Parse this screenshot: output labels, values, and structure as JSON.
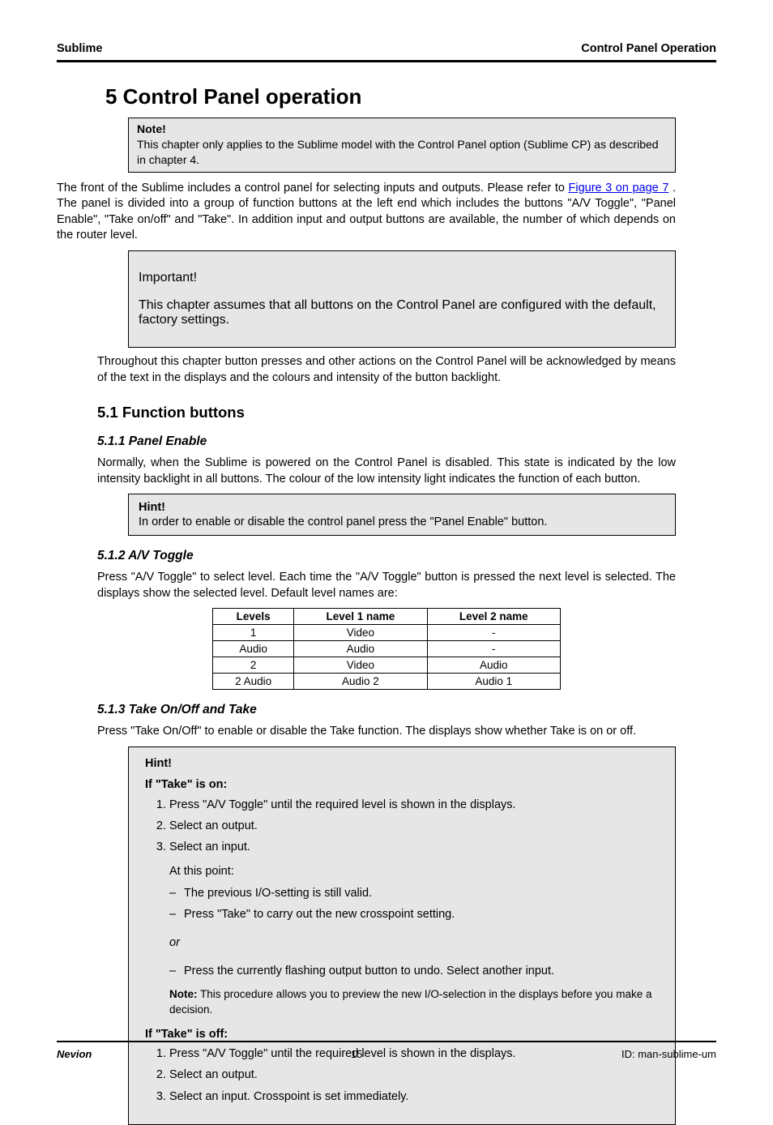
{
  "header": {
    "left": "Sublime",
    "right": "Control Panel Operation"
  },
  "title": "5  Control Panel operation",
  "note_panel": {
    "head": "Note!",
    "body": "This chapter only applies to the Sublime model with the Control Panel option (Sublime CP) as described in chapter 4."
  },
  "intro": {
    "p1_a": "The front of the Sublime includes a control panel for selecting inputs and outputs. Please refer to ",
    "p1_link": "Figure 3 on page 7",
    "p1_b": ". The panel is divided into a group of function buttons at the left end which includes the buttons \"A/V Toggle\", \"Panel Enable\", \"Take on/off\" and \"Take\". In addition input and output buttons are available, the number of which depends on the router level."
  },
  "small_box": {
    "head": "Important!",
    "body": "This chapter assumes that all buttons on the Control Panel are configured with the default, factory settings."
  },
  "ack": "Throughout this chapter button presses and other actions on the Control Panel will be acknowledged by means of the text in the displays and the colours and intensity of the button backlight.",
  "sub_title": "5.1  Function buttons",
  "subsub1": "5.1.1  Panel Enable",
  "panel_enable": "Normally, when the Sublime is powered on the Control Panel is disabled. This state is indicated by the low intensity backlight in all buttons. The colour of the low intensity light indicates the function of each button.",
  "hint1": {
    "head": "Hint!",
    "body": "In order to enable or disable the control panel press the \"Panel Enable\" button."
  },
  "subsub2": "5.1.2  A/V Toggle",
  "av_toggle_para": "Press \"A/V Toggle\" to select level. Each time the \"A/V Toggle\" button is pressed the next level is selected. The displays show the selected level. Default level names are:",
  "table": {
    "columns": [
      "Levels",
      "Level 1 name",
      "Level 2 name"
    ],
    "rows": [
      [
        "1",
        "Video",
        "-"
      ],
      [
        "Audio",
        "Audio",
        "-"
      ],
      [
        "2",
        "Video",
        "Audio"
      ],
      [
        "2 Audio",
        "Audio 2",
        "Audio 1"
      ]
    ]
  },
  "subsub3": "5.1.3  Take On/Off and Take",
  "take_intro": "Press \"Take On/Off\" to enable or disable the Take function. The displays show whether Take is on or off.",
  "big_box": {
    "head": "Hint!",
    "take_on_lead": "If \"Take\" is on:",
    "take_on_steps": [
      "Press \"A/V Toggle\" until the required level is shown in the displays.",
      "Select an output.",
      "Select an input."
    ],
    "at_this_point": "At this point:",
    "dash1": "The previous I/O-setting is still valid.",
    "dash2": "Press \"Take\" to carry out the new crosspoint setting.",
    "or": "or",
    "dash3": "Press the currently flashing output button to undo. Select another input.",
    "note_head": "Note:",
    "note_body": "This procedure allows you to preview the new I/O-selection in the displays before you make a decision.",
    "take_off_lead": "If \"Take\" is off:",
    "take_off_steps": [
      "Press \"A/V Toggle\" until the required level is shown in the displays.",
      "Select an output.",
      "Select an input. Crosspoint is set immediately."
    ]
  },
  "footer": {
    "vendor": "Nevion",
    "pageno": "15",
    "id": "ID: man-sublime-um"
  }
}
